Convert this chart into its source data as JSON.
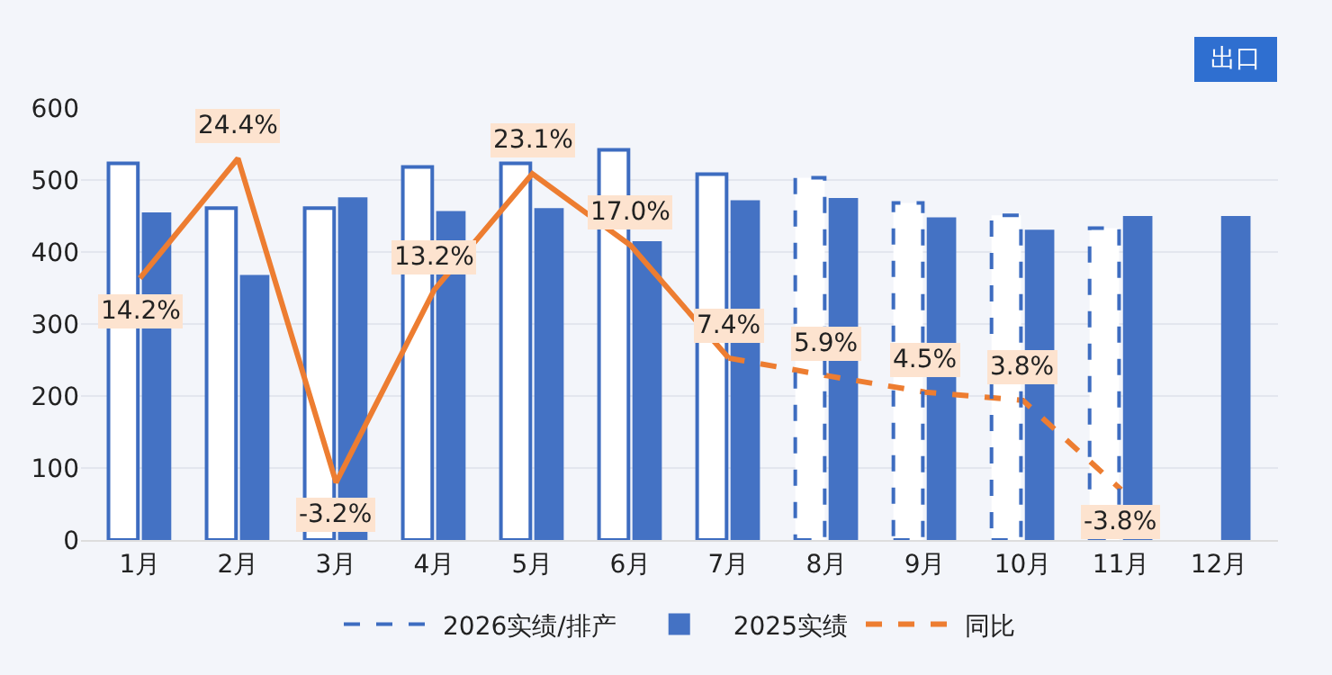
{
  "chart_data": {
    "type": "bar",
    "categories": [
      "1月",
      "2月",
      "3月",
      "4月",
      "5月",
      "6月",
      "7月",
      "8月",
      "9月",
      "10月",
      "11月",
      "12月"
    ],
    "series": [
      {
        "color": "#3d6cc0",
        "line_style": "solid",
        "values": [
          523,
          461,
          461,
          518,
          523,
          542,
          508,
          null,
          null,
          null,
          null,
          null
        ]
      },
      {
        "name": "2026实绩/排产",
        "color": "#3d6cc0",
        "line_style": "dashed",
        "values": [
          null,
          null,
          null,
          null,
          null,
          null,
          null,
          503,
          468,
          451,
          433,
          null
        ]
      },
      {
        "name": "2025实绩",
        "color": "#4472c4",
        "values": [
          455,
          368,
          476,
          457,
          461,
          415,
          472,
          475,
          448,
          431,
          450,
          450
        ]
      },
      {
        "type": "line",
        "axis": "y2",
        "color": "#ed7d31",
        "line_style": "solid",
        "values": [
          14.2,
          24.4,
          -3.2,
          13.2,
          23.1,
          17.0,
          7.4,
          null,
          null,
          null,
          null,
          null
        ],
        "value_labels": [
          "14.2%",
          "24.4%",
          "-3.2%",
          "13.2%",
          "23.1%",
          "17.0%",
          "7.4%",
          null,
          null,
          null,
          null,
          null
        ]
      },
      {
        "type": "line",
        "axis": "y2",
        "name": "同比",
        "color": "#ed7d31",
        "line_style": "dashed",
        "values": [
          null,
          null,
          null,
          null,
          null,
          null,
          7.4,
          5.9,
          4.5,
          3.8,
          -3.8,
          null
        ],
        "value_labels": [
          null,
          null,
          null,
          null,
          null,
          null,
          null,
          "5.9%",
          "4.5%",
          "3.8%",
          "-3.8%",
          null
        ]
      }
    ],
    "ylim": [
      0,
      600
    ],
    "yticks": [
      0,
      100,
      200,
      300,
      400,
      500,
      600
    ],
    "grid": "y",
    "legend": "bottom",
    "annotations": [
      "出口"
    ]
  }
}
